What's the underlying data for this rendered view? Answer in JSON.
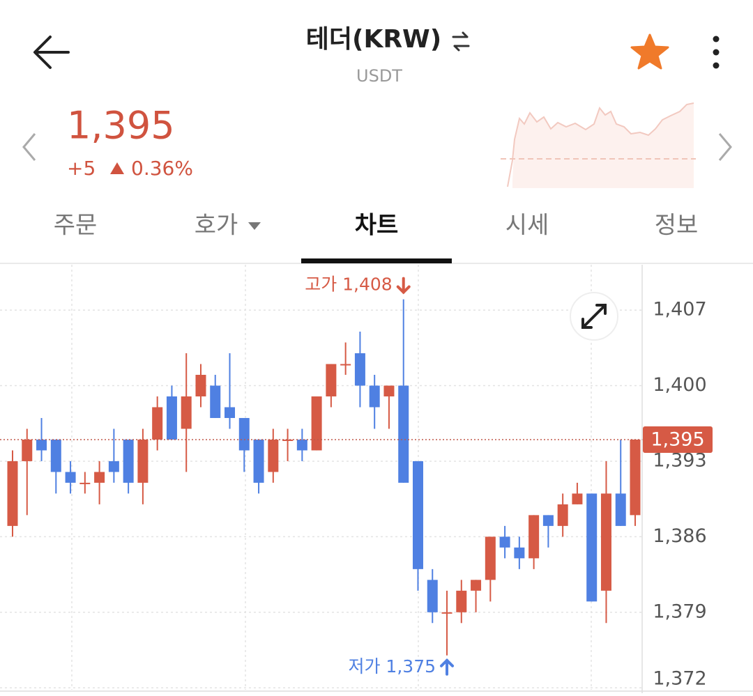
{
  "header": {
    "title": "테더(KRW)",
    "subtitle": "USDT"
  },
  "price": {
    "value": "1,395",
    "change": "+5",
    "change_percent": "0.36%"
  },
  "tabs": [
    "주문",
    "호가",
    "차트",
    "시세",
    "정보"
  ],
  "active_tab": 2,
  "chart_data": {
    "type": "candlestick",
    "up_color": "#d65a45",
    "down_color": "#4f80e2",
    "open": [
      1387,
      1393,
      1395,
      1395,
      1392,
      1391,
      1391,
      1393,
      1395,
      1391,
      1395,
      1399,
      1396,
      1399,
      1400,
      1398,
      1397,
      1395,
      1392,
      1395,
      1395,
      1394,
      1399,
      1402,
      1403,
      1400,
      1399,
      1400,
      1393,
      1382,
      1379,
      1379,
      1381,
      1382,
      1386,
      1385,
      1384,
      1388,
      1387,
      1389,
      1390,
      1381,
      1390,
      1388
    ],
    "high": [
      1394,
      1396,
      1397,
      1395,
      1393,
      1392,
      1393,
      1396,
      1395,
      1396,
      1399,
      1400,
      1403,
      1402,
      1401,
      1403,
      1397,
      1395,
      1396,
      1396,
      1396,
      1399,
      1402,
      1404,
      1405,
      1401,
      1400,
      1408,
      1393,
      1383,
      1381,
      1382,
      1382,
      1386,
      1387,
      1386,
      1388,
      1388,
      1390,
      1391,
      1390,
      1393,
      1395,
      1395
    ],
    "low": [
      1386,
      1388,
      1393,
      1390,
      1390,
      1390,
      1389,
      1391,
      1390,
      1389,
      1394,
      1395,
      1392,
      1398,
      1397,
      1396,
      1392,
      1390,
      1391,
      1393,
      1393,
      1394,
      1398,
      1401,
      1398,
      1396,
      1396,
      1391,
      1381,
      1378,
      1375,
      1378,
      1379,
      1380,
      1384,
      1383,
      1383,
      1385,
      1386,
      1389,
      1380,
      1378,
      1387,
      1387
    ],
    "close": [
      1393,
      1395,
      1394,
      1392,
      1391,
      1391,
      1392,
      1392,
      1391,
      1395,
      1398,
      1395,
      1399,
      1401,
      1397,
      1397,
      1394,
      1391,
      1395,
      1395,
      1394,
      1399,
      1402,
      1402,
      1400,
      1398,
      1400,
      1391,
      1383,
      1379,
      1379,
      1381,
      1382,
      1386,
      1385,
      1384,
      1388,
      1387,
      1389,
      1390,
      1380,
      1390,
      1387,
      1395
    ],
    "ylim": [
      1371.5,
      1411.2
    ],
    "yticks": [
      {
        "value": 1407,
        "label": "1,407"
      },
      {
        "value": 1400,
        "label": "1,400"
      },
      {
        "value": 1393,
        "label": "1,393"
      },
      {
        "value": 1386,
        "label": "1,386"
      },
      {
        "value": 1379,
        "label": "1,379"
      },
      {
        "value": 1372,
        "label": "1,372"
      }
    ],
    "grid": true,
    "annotations": [
      {
        "text": "고가 1,408",
        "value": 1408,
        "kind": "high"
      },
      {
        "text": "저가 1,375",
        "value": 1375,
        "kind": "low"
      }
    ],
    "current_price": {
      "value": 1395,
      "label": "1,395"
    }
  }
}
